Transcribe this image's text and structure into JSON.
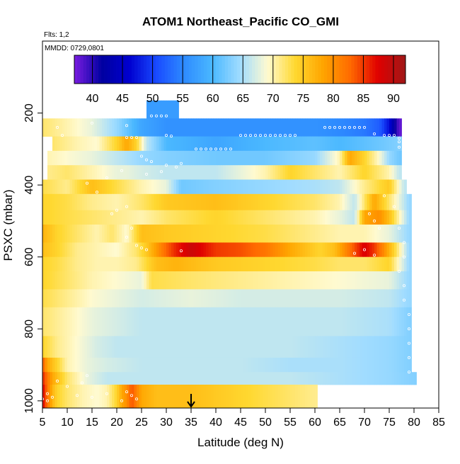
{
  "chart_data": {
    "type": "heatmap",
    "title": "ATOM1 Northeast_Pacific CO_GMI",
    "annotations": {
      "flights": "Flts: 1,2",
      "dates": "MMDD: 0729,0801"
    },
    "xlabel": "Latitude (deg N)",
    "ylabel": "PSXC (mbar)",
    "xlim": [
      5,
      85
    ],
    "ylim": [
      1020,
      0
    ],
    "x_ticks": [
      "5",
      "10",
      "15",
      "20",
      "25",
      "30",
      "35",
      "40",
      "45",
      "50",
      "55",
      "60",
      "65",
      "70",
      "75",
      "80",
      "85"
    ],
    "y_ticks": [
      "200",
      "400",
      "600",
      "800",
      "1000"
    ],
    "colorbar": {
      "range": [
        37,
        92
      ],
      "ticks": [
        "40",
        "45",
        "50",
        "55",
        "60",
        "65",
        "70",
        "75",
        "80",
        "85",
        "90"
      ],
      "colors": [
        "#7a1de0",
        "#0000a0",
        "#0000d0",
        "#1a4cff",
        "#2e8cff",
        "#4ab8ff",
        "#a0dcff",
        "#fffad0",
        "#ffd830",
        "#ffa500",
        "#ff6a00",
        "#e00000",
        "#a01818"
      ]
    },
    "marker": {
      "x": 35,
      "label": "arrow"
    },
    "layers": [
      {
        "p_top": 165,
        "p_bot": 215,
        "x": [
          26,
          32
        ],
        "values": [
          57,
          57
        ]
      },
      {
        "p_top": 215,
        "p_bot": 265,
        "x": [
          5,
          10,
          15,
          20,
          25,
          30,
          40,
          50,
          60,
          66,
          70,
          73,
          75,
          76,
          77
        ],
        "values": [
          72,
          70,
          68,
          64,
          58,
          56,
          56,
          56,
          56,
          55,
          54,
          52,
          47,
          42,
          38
        ]
      },
      {
        "p_top": 265,
        "p_bot": 305,
        "x": [
          7,
          12,
          16,
          20,
          22,
          24,
          26,
          30,
          40,
          50,
          60,
          65,
          70,
          74,
          77
        ],
        "values": [
          72,
          70,
          69,
          74,
          78,
          74,
          66,
          60,
          58,
          60,
          61,
          60,
          61,
          62,
          63
        ]
      },
      {
        "p_top": 305,
        "p_bot": 345,
        "x": [
          6,
          10,
          15,
          20,
          25,
          30,
          40,
          50,
          60,
          65,
          67,
          70,
          73,
          75,
          77
        ],
        "values": [
          70,
          69,
          68,
          66,
          64,
          63,
          62,
          62,
          64,
          70,
          78,
          74,
          69,
          64,
          62
        ]
      },
      {
        "p_top": 345,
        "p_bot": 385,
        "x": [
          6,
          10,
          15,
          20,
          22,
          25,
          30,
          40,
          50,
          55,
          60,
          65,
          70,
          75,
          77
        ],
        "values": [
          71,
          72,
          70,
          68,
          68,
          67,
          66,
          66,
          70,
          74,
          72,
          70,
          74,
          70,
          66
        ]
      },
      {
        "p_top": 385,
        "p_bot": 425,
        "x": [
          5,
          10,
          15,
          20,
          25,
          30,
          33,
          40,
          50,
          60,
          65,
          70,
          75,
          78
        ],
        "values": [
          73,
          71,
          76,
          73,
          70,
          68,
          62,
          63,
          64,
          65,
          66,
          71,
          75,
          66
        ]
      },
      {
        "p_top": 425,
        "p_bot": 470,
        "x": [
          5,
          10,
          15,
          20,
          25,
          30,
          40,
          50,
          60,
          65,
          68,
          72,
          76,
          79
        ],
        "values": [
          74,
          73,
          71,
          70,
          72,
          75,
          76,
          74,
          72,
          70,
          66,
          78,
          70,
          64
        ]
      },
      {
        "p_top": 470,
        "p_bot": 510,
        "x": [
          5,
          10,
          15,
          20,
          25,
          30,
          40,
          50,
          60,
          65,
          68,
          70,
          73,
          75,
          77,
          79
        ],
        "values": [
          74,
          73,
          72,
          71,
          70,
          72,
          74,
          72,
          70,
          68,
          66,
          78,
          80,
          76,
          70,
          64
        ]
      },
      {
        "p_top": 510,
        "p_bot": 560,
        "x": [
          5,
          8,
          12,
          16,
          19,
          22,
          25,
          30,
          40,
          50,
          60,
          65,
          70,
          75,
          79
        ],
        "values": [
          77,
          74,
          72,
          70,
          72,
          69,
          76,
          75,
          74,
          73,
          71,
          70,
          70,
          68,
          64
        ]
      },
      {
        "p_top": 560,
        "p_bot": 600,
        "x": [
          5,
          8,
          12,
          16,
          20,
          24,
          26,
          28,
          30,
          32,
          35,
          40,
          45,
          50,
          55,
          58,
          61,
          64,
          67,
          70,
          72,
          74,
          76,
          79
        ],
        "values": [
          76,
          74,
          71,
          70,
          69,
          72,
          75,
          79,
          83,
          86,
          89,
          85,
          84,
          82,
          78,
          76,
          74,
          76,
          82,
          88,
          85,
          80,
          74,
          64
        ]
      },
      {
        "p_top": 600,
        "p_bot": 640,
        "x": [
          5,
          8,
          12,
          16,
          20,
          24,
          28,
          32,
          40,
          50,
          60,
          65,
          70,
          75,
          79
        ],
        "values": [
          74,
          73,
          71,
          70,
          70,
          71,
          76,
          77,
          75,
          74,
          73,
          72,
          72,
          74,
          64
        ]
      },
      {
        "p_top": 640,
        "p_bot": 690,
        "x": [
          5,
          10,
          15,
          20,
          25,
          27,
          35,
          45,
          55,
          65,
          75,
          79
        ],
        "values": [
          74,
          72,
          70,
          69,
          68,
          73,
          72,
          71,
          70,
          69,
          68,
          64
        ]
      },
      {
        "p_top": 690,
        "p_bot": 740,
        "x": [
          5,
          10,
          15,
          20,
          25,
          35,
          45,
          55,
          65,
          75,
          79
        ],
        "values": [
          73,
          71,
          69,
          68,
          67,
          68,
          67,
          67,
          67,
          66,
          64
        ]
      },
      {
        "p_top": 740,
        "p_bot": 820,
        "x": [
          5,
          10,
          15,
          20,
          25,
          35,
          45,
          55,
          65,
          75,
          79
        ],
        "values": [
          72,
          70,
          68,
          67,
          66,
          66,
          66,
          66,
          66,
          65,
          63
        ]
      },
      {
        "p_top": 820,
        "p_bot": 880,
        "x": [
          5,
          8,
          12,
          16,
          20,
          25,
          35,
          45,
          55,
          65,
          75,
          79
        ],
        "values": [
          74,
          71,
          69,
          67,
          66,
          66,
          66,
          66,
          66,
          65,
          64,
          63
        ]
      },
      {
        "p_top": 880,
        "p_bot": 920,
        "x": [
          5,
          6,
          8,
          10,
          14,
          18,
          25,
          35,
          45,
          55,
          65,
          75,
          79
        ],
        "values": [
          84,
          78,
          74,
          70,
          68,
          67,
          66,
          66,
          66,
          65,
          65,
          64,
          63
        ]
      },
      {
        "p_top": 920,
        "p_bot": 955,
        "x": [
          5,
          6,
          7,
          8,
          10,
          14,
          18,
          25,
          35,
          45,
          55,
          65,
          75,
          80
        ],
        "values": [
          86,
          82,
          78,
          76,
          72,
          68,
          66,
          66,
          66,
          66,
          66,
          65,
          64,
          63
        ]
      },
      {
        "p_top": 955,
        "p_bot": 1020,
        "x": [
          5,
          6,
          7,
          8,
          10,
          13,
          16,
          18,
          20,
          21,
          22,
          23,
          25,
          28,
          35,
          40,
          45,
          50,
          55,
          60
        ],
        "values": [
          88,
          82,
          77,
          74,
          72,
          70,
          69,
          70,
          74,
          78,
          80,
          84,
          78,
          76,
          76,
          75,
          74,
          73,
          72,
          71
        ]
      }
    ],
    "points": [
      [
        8,
        240
      ],
      [
        9,
        262
      ],
      [
        15,
        228
      ],
      [
        22,
        235
      ],
      [
        27,
        208
      ],
      [
        28,
        208
      ],
      [
        29,
        208
      ],
      [
        30,
        208
      ],
      [
        22,
        268
      ],
      [
        23,
        268
      ],
      [
        24,
        268
      ],
      [
        30,
        262
      ],
      [
        31,
        264
      ],
      [
        36,
        300
      ],
      [
        37,
        300
      ],
      [
        38,
        300
      ],
      [
        39,
        300
      ],
      [
        40,
        300
      ],
      [
        41,
        300
      ],
      [
        42,
        300
      ],
      [
        43,
        300
      ],
      [
        45,
        262
      ],
      [
        46,
        262
      ],
      [
        47,
        262
      ],
      [
        48,
        262
      ],
      [
        49,
        262
      ],
      [
        50,
        262
      ],
      [
        51,
        262
      ],
      [
        52,
        262
      ],
      [
        53,
        262
      ],
      [
        54,
        262
      ],
      [
        55,
        262
      ],
      [
        56,
        262
      ],
      [
        62,
        240
      ],
      [
        63,
        240
      ],
      [
        64,
        240
      ],
      [
        65,
        240
      ],
      [
        66,
        240
      ],
      [
        67,
        240
      ],
      [
        68,
        240
      ],
      [
        69,
        240
      ],
      [
        70,
        240
      ],
      [
        72,
        258
      ],
      [
        74,
        262
      ],
      [
        75,
        262
      ],
      [
        76,
        262
      ],
      [
        77,
        270
      ],
      [
        77,
        280
      ],
      [
        77,
        295
      ],
      [
        25,
        320
      ],
      [
        26,
        330
      ],
      [
        27,
        335
      ],
      [
        30,
        345
      ],
      [
        32,
        350
      ],
      [
        33,
        340
      ],
      [
        29,
        363
      ],
      [
        26,
        370
      ],
      [
        21,
        360
      ],
      [
        18,
        380
      ],
      [
        14,
        395
      ],
      [
        16,
        420
      ],
      [
        22,
        460
      ],
      [
        20,
        470
      ],
      [
        19,
        480
      ],
      [
        23,
        520
      ],
      [
        22,
        545
      ],
      [
        33,
        583
      ],
      [
        24,
        568
      ],
      [
        25,
        575
      ],
      [
        26,
        580
      ],
      [
        70,
        580
      ],
      [
        72,
        595
      ],
      [
        68,
        590
      ],
      [
        73,
        520
      ],
      [
        72,
        500
      ],
      [
        71,
        480
      ],
      [
        74,
        430
      ],
      [
        76,
        460
      ],
      [
        77,
        520
      ],
      [
        78,
        560
      ],
      [
        78,
        600
      ],
      [
        77,
        640
      ],
      [
        78,
        680
      ],
      [
        78,
        720
      ],
      [
        79,
        760
      ],
      [
        79,
        800
      ],
      [
        79,
        840
      ],
      [
        79,
        880
      ],
      [
        79,
        920
      ],
      [
        79,
        960
      ],
      [
        6,
        980
      ],
      [
        7,
        990
      ],
      [
        5,
        995
      ],
      [
        6,
        1000
      ],
      [
        12,
        985
      ],
      [
        15,
        990
      ],
      [
        18,
        980
      ],
      [
        22,
        975
      ],
      [
        23,
        985
      ],
      [
        24,
        995
      ],
      [
        21,
        1000
      ],
      [
        14,
        930
      ],
      [
        13,
        950
      ],
      [
        10,
        960
      ],
      [
        8,
        945
      ]
    ]
  }
}
